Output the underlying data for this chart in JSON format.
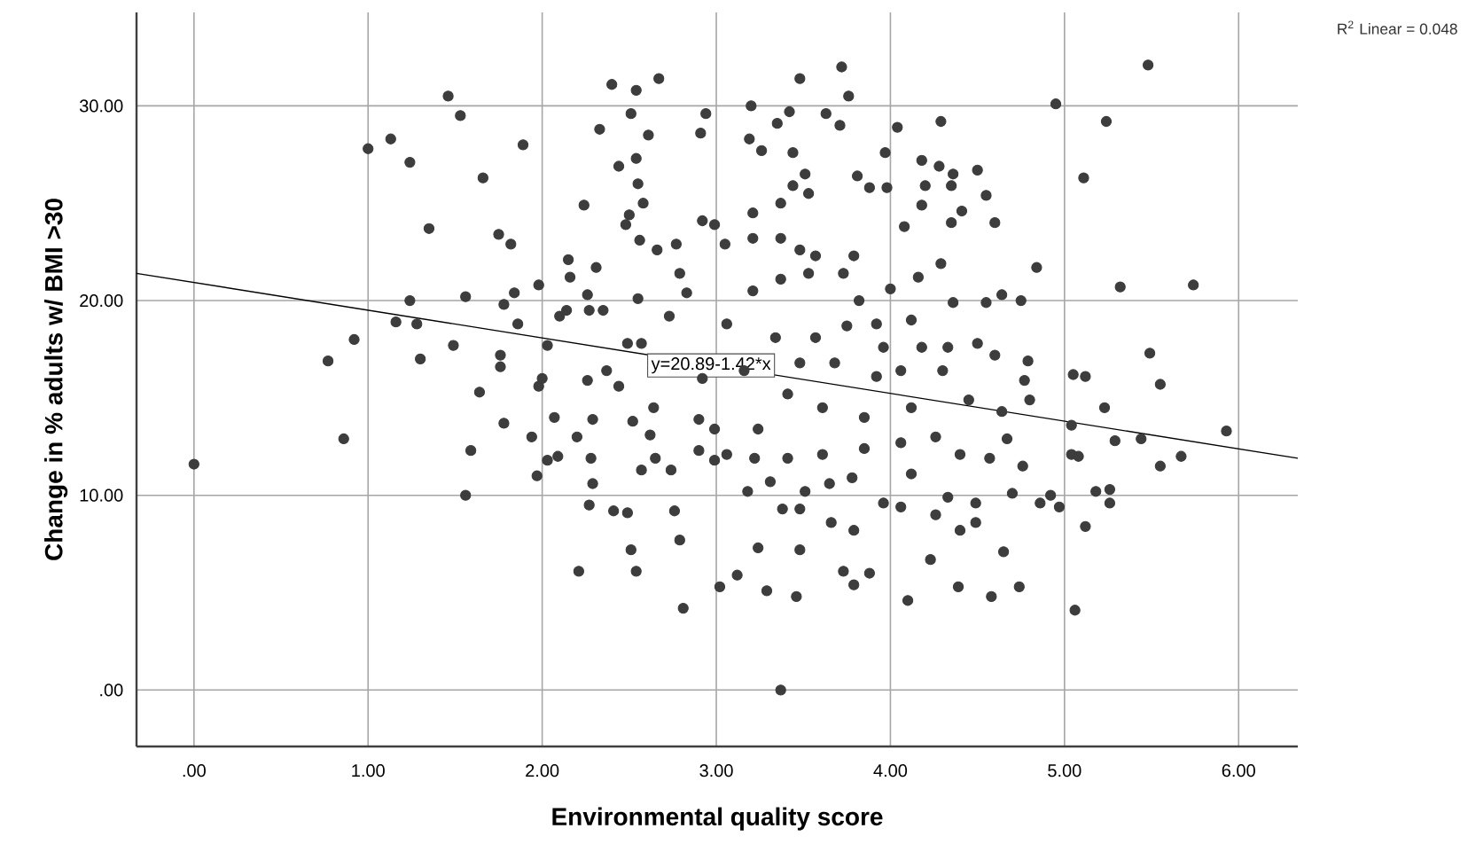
{
  "chart_data": {
    "type": "scatter",
    "xlabel": "Environmental quality score",
    "ylabel": "Change in % adults w/ BMI >30",
    "xlim": [
      -0.33,
      6.34
    ],
    "ylim": [
      -2.9,
      34.8
    ],
    "xticks": [
      {
        "value": 0,
        "label": ".00"
      },
      {
        "value": 1,
        "label": "1.00"
      },
      {
        "value": 2,
        "label": "2.00"
      },
      {
        "value": 3,
        "label": "3.00"
      },
      {
        "value": 4,
        "label": "4.00"
      },
      {
        "value": 5,
        "label": "5.00"
      },
      {
        "value": 6,
        "label": "6.00"
      }
    ],
    "yticks": [
      {
        "value": 0,
        "label": ".00"
      },
      {
        "value": 10,
        "label": "10.00"
      },
      {
        "value": 20,
        "label": "20.00"
      },
      {
        "value": 30,
        "label": "30.00"
      }
    ],
    "grid": true,
    "marker": "circle",
    "annotations": [
      {
        "text": "y=20.89-1.42*x",
        "x": 2.97,
        "y": 16.67
      },
      "R$^{2}$ Linear = 0.048"
    ],
    "series": [
      {
        "color": "#3d3d3d",
        "x": [
          0.0,
          0.77,
          0.86,
          0.92,
          1.0,
          1.13,
          1.16,
          1.24,
          1.24,
          1.28,
          1.3,
          1.35,
          1.46,
          1.49,
          1.53,
          1.56,
          1.56,
          1.59,
          1.64,
          1.66,
          1.75,
          1.76,
          1.76,
          1.78,
          1.78,
          1.82,
          1.84,
          1.86,
          1.89,
          1.94,
          1.97,
          1.98,
          1.98,
          2.0,
          2.03,
          2.03,
          2.07,
          2.09,
          2.21,
          2.15,
          2.16,
          2.1,
          2.14,
          2.24,
          2.26,
          2.27,
          2.27,
          2.28,
          2.29,
          2.26,
          2.29,
          2.2,
          2.31,
          2.33,
          2.4,
          2.41,
          2.44,
          2.49,
          2.51,
          2.54,
          2.51,
          2.54,
          2.54,
          2.55,
          2.58,
          2.56,
          2.5,
          2.48,
          2.67,
          2.61,
          2.66,
          2.77,
          2.91,
          2.94,
          2.92,
          2.99,
          2.81,
          2.79,
          2.76,
          2.49,
          2.57,
          2.44,
          2.52,
          2.62,
          2.57,
          2.65,
          2.74,
          2.83,
          2.73,
          2.9,
          2.9,
          2.92,
          2.99,
          2.99,
          2.79,
          2.55,
          2.35,
          2.37,
          2.64,
          5.48,
          4.95,
          5.24,
          5.11,
          5.32,
          5.74,
          4.84,
          5.49,
          5.55,
          5.93,
          5.67,
          5.55,
          5.44,
          5.29,
          5.23,
          5.05,
          5.12,
          5.04,
          5.04,
          5.08,
          5.18,
          5.26,
          5.26,
          5.12,
          5.06,
          4.97,
          4.86,
          4.92,
          4.8,
          4.77,
          4.79,
          4.75,
          4.64,
          4.55,
          4.5,
          4.6,
          4.6,
          4.55,
          4.5,
          4.41,
          4.35,
          4.35,
          4.36,
          4.28,
          4.18,
          4.2,
          4.29,
          4.04,
          3.97,
          3.98,
          3.76,
          3.72,
          3.48,
          3.63,
          3.71,
          3.42,
          3.35,
          3.44,
          3.51,
          3.2,
          3.19,
          3.26,
          3.37,
          4.1,
          4.39,
          4.58,
          4.74,
          4.23,
          4.65,
          3.88,
          3.79,
          3.73,
          3.46,
          3.29,
          3.02,
          3.12,
          3.48,
          3.24,
          4.4,
          4.49,
          4.26,
          4.06,
          3.79,
          3.66,
          3.96,
          4.12,
          4.33,
          4.49,
          4.7,
          4.76,
          3.38,
          3.48,
          3.18,
          3.31,
          3.51,
          3.41,
          3.65,
          3.78,
          3.61,
          3.85,
          4.06,
          4.26,
          4.4,
          4.57,
          4.67,
          4.64,
          4.45,
          4.3,
          4.18,
          4.06,
          3.96,
          3.92,
          3.82,
          3.73,
          3.53,
          3.37,
          3.21,
          3.06,
          3.05,
          3.21,
          3.37,
          3.57,
          3.79,
          4.0,
          4.16,
          4.29,
          4.36,
          4.12,
          3.75,
          3.57,
          3.34,
          3.16,
          3.41,
          3.61,
          3.85,
          4.12,
          4.33,
          3.24,
          3.06,
          3.22,
          3.48,
          3.68,
          3.92,
          3.81,
          3.88,
          4.08,
          4.18,
          3.44,
          3.53,
          3.37,
          3.21,
          3.48
        ],
        "values": [
          11.6,
          16.9,
          12.9,
          18.0,
          27.8,
          28.3,
          18.9,
          27.1,
          20.0,
          18.8,
          17.0,
          23.7,
          30.5,
          17.7,
          29.5,
          20.2,
          10.0,
          12.3,
          15.3,
          26.3,
          23.4,
          17.2,
          16.6,
          13.7,
          19.8,
          22.9,
          20.4,
          18.8,
          28.0,
          13.0,
          11.0,
          20.8,
          15.6,
          16.0,
          17.7,
          11.8,
          14.0,
          12.0,
          6.1,
          22.1,
          21.2,
          19.2,
          19.5,
          24.9,
          20.3,
          19.5,
          9.5,
          11.9,
          10.6,
          15.9,
          13.9,
          13.0,
          21.7,
          28.8,
          31.1,
          9.2,
          26.9,
          9.1,
          7.2,
          6.1,
          29.6,
          30.8,
          27.3,
          26.0,
          25.0,
          23.1,
          24.4,
          23.9,
          31.4,
          28.5,
          22.6,
          22.9,
          28.6,
          29.6,
          24.1,
          23.9,
          4.2,
          7.7,
          9.2,
          17.8,
          17.8,
          15.6,
          13.8,
          13.1,
          11.3,
          11.9,
          11.3,
          20.4,
          19.2,
          13.9,
          12.3,
          16.0,
          13.4,
          11.8,
          21.4,
          20.1,
          19.5,
          16.4,
          14.5,
          32.1,
          30.1,
          29.2,
          26.3,
          20.7,
          20.8,
          21.7,
          17.3,
          15.7,
          13.3,
          12.0,
          11.5,
          12.9,
          12.8,
          14.5,
          16.2,
          16.1,
          13.6,
          12.1,
          12.0,
          10.2,
          10.3,
          9.6,
          8.4,
          4.1,
          9.4,
          9.6,
          10.0,
          14.9,
          15.9,
          16.9,
          20.0,
          20.3,
          19.9,
          17.8,
          17.2,
          24.0,
          25.4,
          26.7,
          24.6,
          24.0,
          25.9,
          26.5,
          26.9,
          27.2,
          25.9,
          29.2,
          28.9,
          27.6,
          25.8,
          30.5,
          32.0,
          31.4,
          29.6,
          29.0,
          29.7,
          29.1,
          27.6,
          26.5,
          30.0,
          28.3,
          27.7,
          0.0,
          4.6,
          5.3,
          4.8,
          5.3,
          6.7,
          7.1,
          6.0,
          5.4,
          6.1,
          4.8,
          5.1,
          5.3,
          5.9,
          7.2,
          7.3,
          8.2,
          8.6,
          9.0,
          9.4,
          8.2,
          8.6,
          9.6,
          11.1,
          9.9,
          9.6,
          10.1,
          11.5,
          9.3,
          9.3,
          10.2,
          10.7,
          10.2,
          11.9,
          10.6,
          10.9,
          12.1,
          12.4,
          12.7,
          13.0,
          12.1,
          11.9,
          12.9,
          14.3,
          14.9,
          16.4,
          17.6,
          16.4,
          17.6,
          18.8,
          20.0,
          21.4,
          21.4,
          21.1,
          20.5,
          18.8,
          22.9,
          23.2,
          23.2,
          22.3,
          22.3,
          20.6,
          21.2,
          21.9,
          19.9,
          19.0,
          18.7,
          18.1,
          18.1,
          16.4,
          15.2,
          14.5,
          14.0,
          14.5,
          17.6,
          13.4,
          12.1,
          11.9,
          16.8,
          16.8,
          16.1,
          26.4,
          25.8,
          23.8,
          24.9,
          25.9,
          25.5,
          25.0,
          24.5,
          22.6
        ]
      },
      {
        "type": "line",
        "color": "#000000",
        "marker": "none",
        "line_style": "solid",
        "x": [
          -0.33,
          6.34
        ],
        "values": [
          21.4,
          11.9
        ]
      }
    ]
  }
}
